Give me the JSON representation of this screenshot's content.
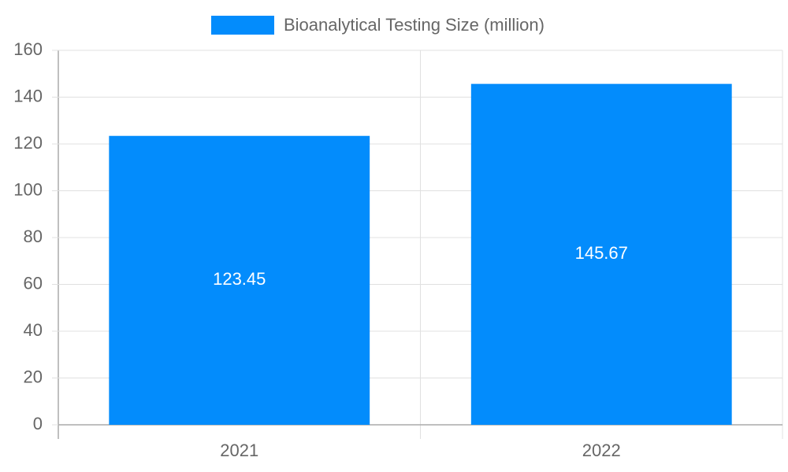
{
  "chart_data": {
    "type": "bar",
    "categories": [
      "2021",
      "2022"
    ],
    "series": [
      {
        "name": "Bioanalytical Testing Size (million)",
        "color": "#038cfc",
        "values": [
          123.45,
          145.67
        ]
      }
    ],
    "ylim": [
      0,
      160
    ],
    "yticks": [
      0,
      20,
      40,
      60,
      80,
      100,
      120,
      140,
      160
    ],
    "grid": true,
    "legend": "top"
  }
}
